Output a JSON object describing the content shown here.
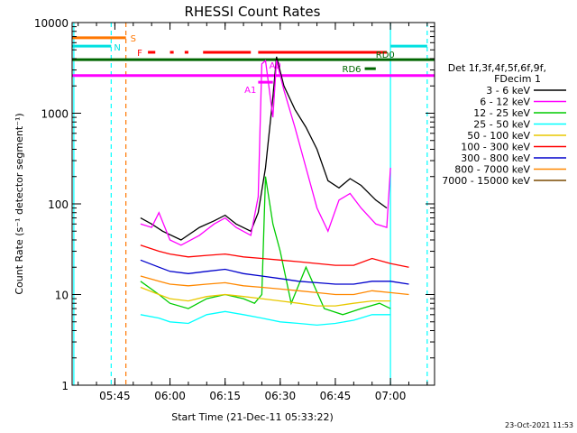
{
  "chart_data": {
    "type": "line",
    "title": "RHESSI Count Rates",
    "xlabel": "Start Time (21-Dec-11 05:33:22)",
    "ylabel": "Count Rate (s⁻¹ detector segment⁻¹)",
    "y_scale": "log",
    "ylim": [
      1,
      10000
    ],
    "xlim": [
      "05:33:22",
      "07:12:00"
    ],
    "x_ticks": [
      "05:45",
      "06:00",
      "06:15",
      "06:30",
      "06:45",
      "07:00"
    ],
    "y_ticks": [
      "1",
      "10",
      "100",
      "1000",
      "10000"
    ],
    "legend_position": "right",
    "legend_header": [
      "Det 1f,3f,4f,5f,6f,9f,",
      "FDecim 1"
    ],
    "series": [
      {
        "name": "3 - 6 keV",
        "color": "#000000",
        "x": [
          "05:52",
          "05:55",
          "05:58",
          "06:03",
          "06:08",
          "06:12",
          "06:15",
          "06:18",
          "06:22",
          "06:24",
          "06:26",
          "06:28",
          "06:29",
          "06:31",
          "06:34",
          "06:37",
          "06:40",
          "06:43",
          "06:46",
          "06:49",
          "06:52",
          "06:56",
          "06:59"
        ],
        "values": [
          70,
          60,
          50,
          40,
          55,
          65,
          75,
          60,
          50,
          80,
          250,
          1500,
          4200,
          2000,
          1100,
          700,
          400,
          180,
          150,
          190,
          160,
          110,
          90
        ]
      },
      {
        "name": "6 - 12 keV",
        "color": "#ff00ff",
        "x": [
          "05:52",
          "05:55",
          "05:57",
          "06:00",
          "06:03",
          "06:08",
          "06:12",
          "06:15",
          "06:18",
          "06:22",
          "06:24",
          "06:25",
          "06:26",
          "06:28",
          "06:29",
          "06:31",
          "06:34",
          "06:37",
          "06:40",
          "06:43",
          "06:46",
          "06:49",
          "06:52",
          "06:56",
          "06:59",
          "07:00"
        ],
        "values": [
          60,
          55,
          80,
          40,
          35,
          45,
          60,
          70,
          55,
          45,
          120,
          3500,
          3800,
          900,
          3800,
          1800,
          700,
          250,
          90,
          50,
          110,
          130,
          90,
          60,
          55,
          250
        ]
      },
      {
        "name": "12 - 25 keV",
        "color": "#00cc00",
        "x": [
          "05:52",
          "05:57",
          "06:00",
          "06:05",
          "06:10",
          "06:15",
          "06:20",
          "06:23",
          "06:25",
          "06:26",
          "06:28",
          "06:30",
          "06:33",
          "06:37",
          "06:42",
          "06:47",
          "06:52",
          "06:57",
          "07:00"
        ],
        "values": [
          14,
          10,
          8,
          7,
          9,
          10,
          9,
          8,
          10,
          200,
          60,
          30,
          8,
          20,
          7,
          6,
          7,
          8,
          7
        ]
      },
      {
        "name": "25 - 50 keV",
        "color": "#00ffff",
        "x": [
          "05:52",
          "05:57",
          "06:00",
          "06:05",
          "06:10",
          "06:15",
          "06:20",
          "06:25",
          "06:30",
          "06:35",
          "06:40",
          "06:45",
          "06:50",
          "06:55",
          "07:00"
        ],
        "values": [
          6,
          5.5,
          5,
          4.8,
          6,
          6.5,
          6,
          5.5,
          5,
          4.8,
          4.6,
          4.8,
          5.2,
          6,
          6
        ]
      },
      {
        "name": "50 - 100 keV",
        "color": "#e8c800",
        "x": [
          "05:52",
          "05:57",
          "06:00",
          "06:05",
          "06:10",
          "06:15",
          "06:20",
          "06:25",
          "06:30",
          "06:35",
          "06:40",
          "06:45",
          "06:50",
          "06:55",
          "07:00"
        ],
        "values": [
          12,
          10,
          9,
          8.5,
          9.5,
          10,
          9.5,
          9,
          8.5,
          8,
          7.5,
          7.5,
          8,
          8.5,
          8.5
        ]
      },
      {
        "name": "100 - 300 keV",
        "color": "#ff0000",
        "x": [
          "05:52",
          "05:57",
          "06:00",
          "06:05",
          "06:10",
          "06:15",
          "06:20",
          "06:25",
          "06:30",
          "06:35",
          "06:40",
          "06:45",
          "06:50",
          "06:55",
          "07:00",
          "07:05"
        ],
        "values": [
          35,
          30,
          28,
          26,
          27,
          28,
          26,
          25,
          24,
          23,
          22,
          21,
          21,
          25,
          22,
          20
        ]
      },
      {
        "name": "300 - 800 keV",
        "color": "#0000cc",
        "x": [
          "05:52",
          "05:57",
          "06:00",
          "06:05",
          "06:10",
          "06:15",
          "06:20",
          "06:25",
          "06:30",
          "06:35",
          "06:40",
          "06:45",
          "06:50",
          "06:55",
          "07:00",
          "07:05"
        ],
        "values": [
          24,
          20,
          18,
          17,
          18,
          19,
          17,
          16,
          15,
          14,
          13.5,
          13,
          13,
          14,
          14,
          13
        ]
      },
      {
        "name": "800 - 7000 keV",
        "color": "#ff8800",
        "x": [
          "05:52",
          "05:57",
          "06:00",
          "06:05",
          "06:10",
          "06:15",
          "06:20",
          "06:25",
          "06:30",
          "06:35",
          "06:40",
          "06:45",
          "06:50",
          "06:55",
          "07:00",
          "07:05"
        ],
        "values": [
          16,
          14,
          13,
          12.5,
          13,
          13.5,
          12.5,
          12,
          11.5,
          11,
          10.5,
          10,
          10,
          11,
          10.5,
          10
        ]
      },
      {
        "name": "7000 - 15000 keV",
        "color": "#7a4a00",
        "x": [],
        "values": []
      }
    ],
    "annotations": [
      {
        "label": "S",
        "color": "#ff7700",
        "y": 6800,
        "segments": [
          [
            "05:33:22",
            "05:48"
          ]
        ]
      },
      {
        "label": "N",
        "color": "#00e0e0",
        "y": 5500,
        "segments": [
          [
            "05:33:22",
            "05:44"
          ],
          [
            "07:00",
            "07:10"
          ]
        ]
      },
      {
        "label": "F",
        "color": "#ff0000",
        "y": 4700,
        "segments": [
          [
            "05:54",
            "05:56"
          ],
          [
            "06:00",
            "06:01"
          ],
          [
            "06:04",
            "06:05"
          ],
          [
            "06:09",
            "06:22"
          ],
          [
            "06:24",
            "06:59"
          ]
        ]
      },
      {
        "label": "",
        "color": "#006600",
        "y": 3900,
        "segments": [
          [
            "05:33:22",
            "07:12"
          ]
        ]
      },
      {
        "label": "RD0",
        "color": "#006600",
        "y": 3900,
        "segments": []
      },
      {
        "label": "RD6",
        "color": "#006600",
        "y": 3100,
        "segments": [
          [
            "06:53",
            "06:56"
          ]
        ]
      },
      {
        "label": "",
        "color": "#ff00ff",
        "y": 2600,
        "segments": [
          [
            "05:33:22",
            "07:12"
          ]
        ]
      },
      {
        "label": "A1",
        "color": "#ff00ff",
        "y": 2200,
        "segments": [
          [
            "06:24",
            "06:28"
          ]
        ]
      },
      {
        "label": "A0",
        "color": "#ff00ff",
        "y": 3400,
        "segments": []
      }
    ],
    "vlines": [
      {
        "x": "05:33:50",
        "color": "#00ffff",
        "style": "solid"
      },
      {
        "x": "05:44",
        "color": "#00ffff",
        "style": "dashed"
      },
      {
        "x": "05:48",
        "color": "#ff7700",
        "style": "dashed"
      },
      {
        "x": "07:00",
        "color": "#00ffff",
        "style": "solid"
      },
      {
        "x": "07:10",
        "color": "#00ffff",
        "style": "dashed"
      }
    ]
  },
  "footer": {
    "timestamp": "23-Oct-2021 11:53"
  }
}
